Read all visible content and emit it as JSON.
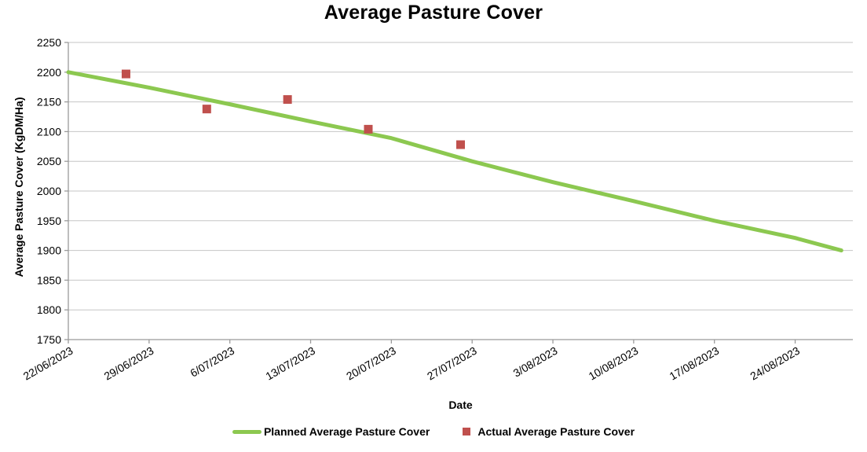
{
  "chart_data": {
    "type": "line",
    "title": "Average Pasture Cover",
    "xlabel": "Date",
    "ylabel": "Average Pasture Cover (KgDM/Ha)",
    "ylim": [
      1750,
      2250
    ],
    "yticks": [
      1750,
      1800,
      1850,
      1900,
      1950,
      2000,
      2050,
      2100,
      2150,
      2200,
      2250
    ],
    "xtick_labels": [
      "22/06/2023",
      "29/06/2023",
      "6/07/2023",
      "13/07/2023",
      "20/07/2023",
      "27/07/2023",
      "3/08/2023",
      "10/08/2023",
      "17/08/2023",
      "24/08/2023"
    ],
    "xtick_days": [
      0,
      7,
      14,
      21,
      28,
      35,
      42,
      49,
      56,
      63
    ],
    "x_domain_days": [
      0,
      68
    ],
    "grid": "horizontal",
    "legend_position": "bottom",
    "series": [
      {
        "name": "Planned Average Pasture Cover",
        "type": "line",
        "color": "#8CC850",
        "stroke_width": 5,
        "points": [
          {
            "date": "22/06/2023",
            "day": 0,
            "value": 2200
          },
          {
            "date": "29/06/2023",
            "day": 7,
            "value": 2174
          },
          {
            "date": "6/07/2023",
            "day": 14,
            "value": 2146
          },
          {
            "date": "13/07/2023",
            "day": 21,
            "value": 2117
          },
          {
            "date": "20/07/2023",
            "day": 28,
            "value": 2089
          },
          {
            "date": "27/07/2023",
            "day": 35,
            "value": 2050
          },
          {
            "date": "3/08/2023",
            "day": 42,
            "value": 2015
          },
          {
            "date": "10/08/2023",
            "day": 49,
            "value": 1983
          },
          {
            "date": "17/08/2023",
            "day": 56,
            "value": 1950
          },
          {
            "date": "24/08/2023",
            "day": 63,
            "value": 1921
          },
          {
            "date": "28/08/2023",
            "day": 67,
            "value": 1900
          }
        ]
      },
      {
        "name": "Actual Average Pasture Cover",
        "type": "scatter",
        "marker": "square",
        "marker_size": 11,
        "color": "#C0504D",
        "points": [
          {
            "date": "27/06/2023",
            "day": 5,
            "value": 2197
          },
          {
            "date": "4/07/2023",
            "day": 12,
            "value": 2138
          },
          {
            "date": "11/07/2023",
            "day": 19,
            "value": 2154
          },
          {
            "date": "18/07/2023",
            "day": 26,
            "value": 2104
          },
          {
            "date": "26/07/2023",
            "day": 34,
            "value": 2078
          }
        ]
      }
    ]
  },
  "legend": {
    "items": [
      {
        "label": "Planned Average Pasture Cover",
        "swatch": "line",
        "color": "#8CC850"
      },
      {
        "label": "Actual Average Pasture Cover",
        "swatch": "square",
        "color": "#C0504D"
      }
    ]
  },
  "colors": {
    "planned_line": "#8CC850",
    "actual_marker": "#C0504D",
    "gridline": "#C6C6C6",
    "axis": "#9B9B9B",
    "text": "#000000",
    "background": "#FFFFFF"
  }
}
